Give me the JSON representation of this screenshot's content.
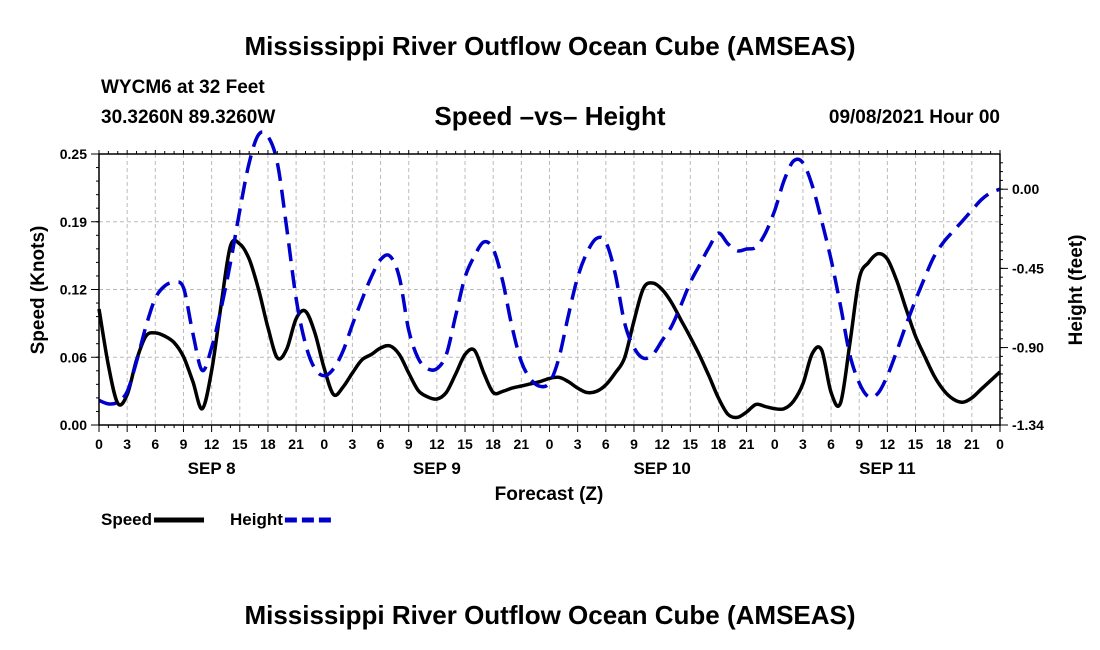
{
  "header": {
    "title": "Mississippi River Outflow Ocean Cube (AMSEAS)",
    "station": "WYCM6 at 32 Feet",
    "coords": "30.3260N  89.3260W",
    "chart_title": "Speed –vs– Height",
    "date": "09/08/2021 Hour 00"
  },
  "footer": {
    "title": "Mississippi River Outflow Ocean Cube (AMSEAS)"
  },
  "colors": {
    "speed": "#000000",
    "height": "#0000cc",
    "grid": "#bbbbbb"
  },
  "chart_data": {
    "type": "line",
    "title": "Speed –vs– Height",
    "xlabel": "Forecast (Z)",
    "ylabel": "Speed (Knots)",
    "y2label": "Height (feet)",
    "xlim": [
      0,
      96
    ],
    "ylim": [
      0,
      0.25
    ],
    "y2lim": [
      -1.34,
      0.2
    ],
    "x_tick_labels": [
      "0",
      "3",
      "6",
      "9",
      "12",
      "15",
      "18",
      "21",
      "0",
      "3",
      "6",
      "9",
      "12",
      "15",
      "18",
      "21",
      "0",
      "3",
      "6",
      "9",
      "12",
      "15",
      "18",
      "21",
      "0",
      "3",
      "6",
      "9",
      "12",
      "15",
      "18",
      "21",
      "0"
    ],
    "y_ticks": [
      {
        "value": 0.0,
        "label": "0.00"
      },
      {
        "value": 0.0625,
        "label": "0.06"
      },
      {
        "value": 0.125,
        "label": "0.12"
      },
      {
        "value": 0.1875,
        "label": "0.19"
      },
      {
        "value": 0.25,
        "label": "0.25"
      }
    ],
    "y2_ticks": [
      {
        "value": 0.0,
        "label": "0.00"
      },
      {
        "value": -0.45,
        "label": "-0.45"
      },
      {
        "value": -0.9,
        "label": "-0.90"
      },
      {
        "value": -1.34,
        "label": "-1.34"
      }
    ],
    "day_labels": [
      {
        "x": 12,
        "label": "SEP 8"
      },
      {
        "x": 36,
        "label": "SEP 9"
      },
      {
        "x": 60,
        "label": "SEP 10"
      },
      {
        "x": 84,
        "label": "SEP 11"
      }
    ],
    "legend": [
      {
        "name": "Speed",
        "style": "solid",
        "color": "#000000"
      },
      {
        "name": "Height",
        "style": "dashed",
        "color": "#0000cc"
      }
    ],
    "series": [
      {
        "name": "Speed",
        "axis": "left",
        "unit": "Knots",
        "x": [
          0,
          1,
          2,
          3,
          4,
          5,
          6,
          7,
          8,
          9,
          10,
          11,
          12,
          13,
          14,
          15,
          16,
          17,
          18,
          19,
          20,
          21,
          22,
          23,
          24,
          25,
          26,
          27,
          28,
          29,
          30,
          31,
          32,
          33,
          34,
          35,
          36,
          37,
          38,
          39,
          40,
          41,
          42,
          43,
          44,
          45,
          46,
          47,
          48,
          49,
          50,
          51,
          52,
          53,
          54,
          55,
          56,
          57,
          58,
          59,
          60,
          61,
          62,
          63,
          64,
          65,
          66,
          67,
          68,
          69,
          70,
          71,
          72,
          73,
          74,
          75,
          76,
          77,
          78,
          79,
          80,
          81,
          82,
          83,
          84,
          85,
          86,
          87,
          88,
          89,
          90,
          91,
          92,
          93,
          94,
          95,
          96
        ],
        "values": [
          0.107,
          0.055,
          0.02,
          0.028,
          0.06,
          0.082,
          0.085,
          0.082,
          0.076,
          0.063,
          0.04,
          0.015,
          0.05,
          0.11,
          0.165,
          0.167,
          0.153,
          0.125,
          0.09,
          0.062,
          0.07,
          0.098,
          0.105,
          0.085,
          0.052,
          0.028,
          0.035,
          0.048,
          0.06,
          0.065,
          0.071,
          0.073,
          0.065,
          0.048,
          0.032,
          0.026,
          0.024,
          0.03,
          0.047,
          0.065,
          0.069,
          0.048,
          0.03,
          0.031,
          0.034,
          0.036,
          0.038,
          0.04,
          0.043,
          0.044,
          0.04,
          0.034,
          0.03,
          0.031,
          0.037,
          0.048,
          0.062,
          0.096,
          0.126,
          0.131,
          0.125,
          0.113,
          0.097,
          0.081,
          0.064,
          0.045,
          0.025,
          0.01,
          0.007,
          0.012,
          0.019,
          0.017,
          0.015,
          0.015,
          0.022,
          0.038,
          0.066,
          0.069,
          0.03,
          0.02,
          0.075,
          0.135,
          0.15,
          0.158,
          0.153,
          0.133,
          0.107,
          0.082,
          0.063,
          0.045,
          0.032,
          0.024,
          0.021,
          0.025,
          0.033,
          0.041,
          0.049
        ]
      },
      {
        "name": "Height",
        "axis": "right",
        "unit": "feet",
        "x": [
          0,
          1,
          2,
          3,
          4,
          5,
          6,
          7,
          8,
          9,
          10,
          11,
          12,
          13,
          14,
          15,
          16,
          17,
          18,
          19,
          20,
          21,
          22,
          23,
          24,
          25,
          26,
          27,
          28,
          29,
          30,
          31,
          32,
          33,
          34,
          35,
          36,
          37,
          38,
          39,
          40,
          41,
          42,
          43,
          44,
          45,
          46,
          47,
          48,
          49,
          50,
          51,
          52,
          53,
          54,
          55,
          56,
          57,
          58,
          59,
          60,
          61,
          62,
          63,
          64,
          65,
          66,
          67,
          68,
          69,
          70,
          71,
          72,
          73,
          74,
          75,
          76,
          77,
          78,
          79,
          80,
          81,
          82,
          83,
          84,
          85,
          86,
          87,
          88,
          89,
          90,
          91,
          92,
          93,
          94,
          95,
          96
        ],
        "values": [
          -1.2,
          -1.22,
          -1.21,
          -1.15,
          -0.98,
          -0.78,
          -0.62,
          -0.55,
          -0.53,
          -0.56,
          -0.82,
          -1.03,
          -0.9,
          -0.68,
          -0.42,
          -0.12,
          0.15,
          0.31,
          0.3,
          0.15,
          -0.22,
          -0.62,
          -0.88,
          -1.02,
          -1.06,
          -1.02,
          -0.92,
          -0.77,
          -0.63,
          -0.5,
          -0.4,
          -0.38,
          -0.5,
          -0.8,
          -0.96,
          -1.02,
          -1.02,
          -0.94,
          -0.72,
          -0.5,
          -0.38,
          -0.3,
          -0.34,
          -0.52,
          -0.78,
          -0.98,
          -1.08,
          -1.12,
          -1.1,
          -0.96,
          -0.72,
          -0.5,
          -0.36,
          -0.28,
          -0.3,
          -0.48,
          -0.76,
          -0.9,
          -0.96,
          -0.94,
          -0.86,
          -0.78,
          -0.66,
          -0.53,
          -0.43,
          -0.33,
          -0.25,
          -0.31,
          -0.35,
          -0.34,
          -0.33,
          -0.25,
          -0.12,
          0.05,
          0.16,
          0.15,
          0.02,
          -0.18,
          -0.4,
          -0.66,
          -0.94,
          -1.1,
          -1.18,
          -1.16,
          -1.06,
          -0.92,
          -0.77,
          -0.63,
          -0.5,
          -0.38,
          -0.3,
          -0.24,
          -0.18,
          -0.12,
          -0.06,
          -0.02,
          0.0
        ]
      }
    ]
  }
}
